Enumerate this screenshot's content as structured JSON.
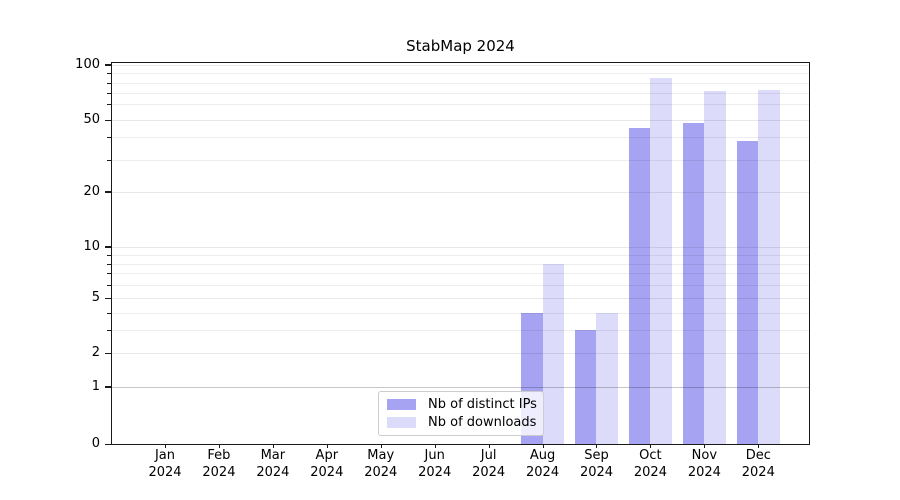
{
  "title": "StabMap 2024",
  "y_axis": {
    "tick_values": [
      0,
      1,
      2,
      5,
      10,
      20,
      50,
      100
    ],
    "tick_labels": [
      "0",
      "1",
      "2",
      "5",
      "10",
      "20",
      "50",
      "100"
    ]
  },
  "x_axis": {
    "months": [
      "Jan",
      "Feb",
      "Mar",
      "Apr",
      "May",
      "Jun",
      "Jul",
      "Aug",
      "Sep",
      "Oct",
      "Nov",
      "Dec"
    ],
    "year": "2024"
  },
  "legend": {
    "entries": [
      {
        "label": "Nb of distinct IPs",
        "color": "#a5a3f2"
      },
      {
        "label": "Nb of downloads",
        "color": "#dcdbf9"
      }
    ]
  },
  "chart_data": {
    "type": "bar",
    "title": "StabMap 2024",
    "categories": [
      "Jan 2024",
      "Feb 2024",
      "Mar 2024",
      "Apr 2024",
      "May 2024",
      "Jun 2024",
      "Jul 2024",
      "Aug 2024",
      "Sep 2024",
      "Oct 2024",
      "Nov 2024",
      "Dec 2024"
    ],
    "series": [
      {
        "name": "Nb of distinct IPs",
        "color": "#a5a3f2",
        "values": [
          0,
          0,
          0,
          0,
          0,
          0,
          0,
          4,
          3,
          45,
          48,
          38
        ]
      },
      {
        "name": "Nb of downloads",
        "color": "#dcdbf9",
        "values": [
          0,
          0,
          0,
          0,
          0,
          0,
          0,
          8,
          4,
          85,
          72,
          73
        ]
      }
    ],
    "xlabel": "",
    "ylabel": "",
    "yscale": "symlog",
    "yticks": [
      0,
      1,
      2,
      5,
      10,
      20,
      50,
      100
    ],
    "ylim": [
      0,
      105
    ],
    "grid": "horizontal major+minor, drawn above bars",
    "legend_position": "lower center inside plot",
    "bar_group": "two bars per month, IPs left of tick, downloads right of tick"
  }
}
